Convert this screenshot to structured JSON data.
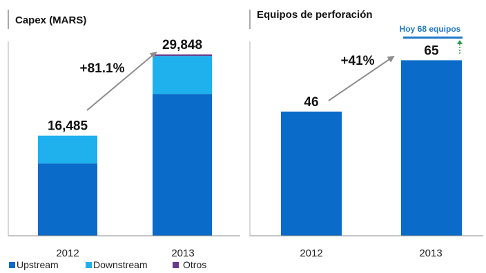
{
  "colors": {
    "upstream": "#0a6bc8",
    "downstream": "#1fb0ee",
    "otros": "#6a3a8e",
    "rigs": "#0a6bc8",
    "arrow": "#8c8c8c",
    "note": "#1f78c8",
    "note_arrow": "#2a9a4a",
    "axis": "#8c8c8c"
  },
  "chart_data": [
    {
      "type": "bar",
      "stacked": true,
      "title": "Capex (MARS)",
      "categories": [
        "2012",
        "2013"
      ],
      "series": [
        {
          "name": "Upstream",
          "values": [
            11900,
            23350
          ]
        },
        {
          "name": "Downstream",
          "values": [
            4585,
            6250
          ]
        },
        {
          "name": "Otros",
          "values": [
            0,
            248
          ]
        }
      ],
      "totals": [
        "16,485",
        "29,848"
      ],
      "growth_label": "+81.1%",
      "ylim": [
        0,
        32000
      ],
      "grid": false,
      "legend_position": "bottom-left"
    },
    {
      "type": "bar",
      "title": "Equipos de perforación",
      "categories": [
        "2012",
        "2013"
      ],
      "values": [
        46,
        65
      ],
      "value_labels": [
        "46",
        "65"
      ],
      "growth_label": "+41%",
      "annotation": "Hoy 68 equipos",
      "annotation_value": 68,
      "ylim": [
        0,
        72
      ],
      "grid": false
    }
  ]
}
